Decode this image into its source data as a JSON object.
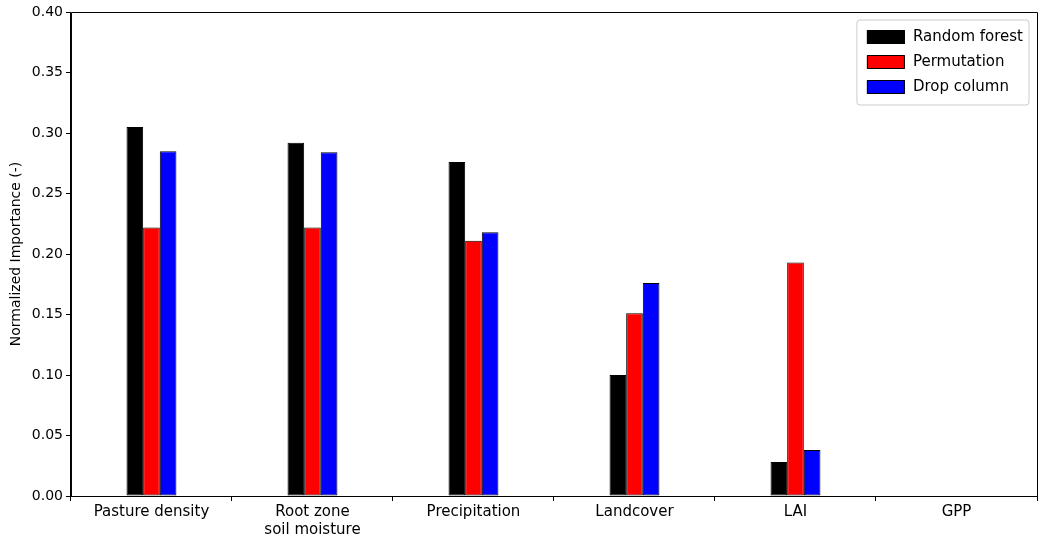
{
  "chart_data": {
    "type": "bar",
    "ylabel": "Normalized Importance (-)",
    "categories": [
      "Pasture density",
      "Root zone soil moisture",
      "Precipitation",
      "Landcover",
      "LAI",
      "GPP"
    ],
    "series": [
      {
        "name": "Random forest",
        "color": "#000000",
        "values": [
          0.305,
          0.292,
          0.276,
          0.1,
          0.028,
          0
        ]
      },
      {
        "name": "Permutation",
        "color": "#ff0000",
        "values": [
          0.222,
          0.222,
          0.211,
          0.151,
          0.193,
          0
        ]
      },
      {
        "name": "Drop column",
        "color": "#0000ff",
        "values": [
          0.285,
          0.284,
          0.218,
          0.176,
          0.038,
          0
        ]
      }
    ],
    "ylim": [
      0,
      0.4
    ],
    "yticks": [
      {
        "value": 0,
        "label": "0.00"
      },
      {
        "value": 0.05,
        "label": "0.05"
      },
      {
        "value": 0.1,
        "label": "0.10"
      },
      {
        "value": 0.15,
        "label": "0.15"
      },
      {
        "value": 0.2,
        "label": "0.20"
      },
      {
        "value": 0.25,
        "label": "0.25"
      },
      {
        "value": 0.3,
        "label": "0.30"
      },
      {
        "value": 0.35,
        "label": "0.35"
      },
      {
        "value": 0.4,
        "label": "0.40"
      }
    ],
    "grid": false,
    "legend": "top right"
  }
}
